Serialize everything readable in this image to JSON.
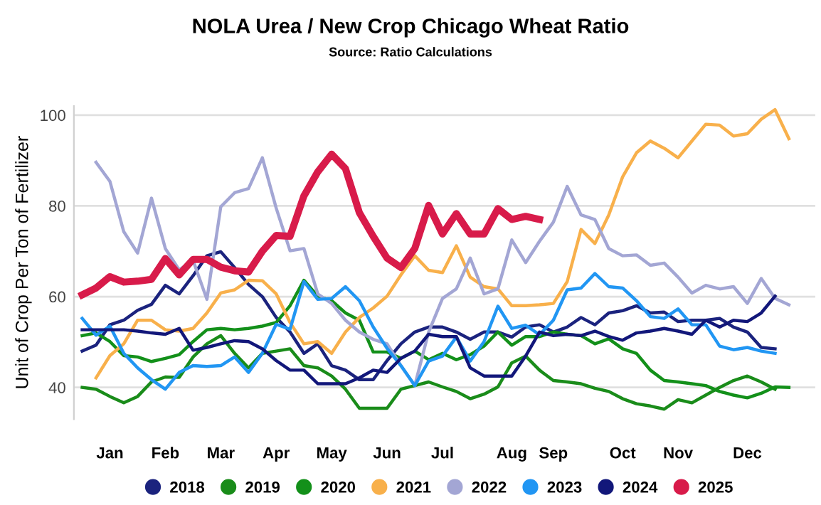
{
  "chart_data": {
    "type": "line",
    "title": "NOLA Urea / New Crop Chicago Wheat Ratio",
    "subtitle": "Source: Ratio Calculations",
    "ylabel": "Unit of Crop Per Ton of Fertilizer",
    "categories": [
      null,
      null,
      "Jan",
      null,
      null,
      null,
      "Feb",
      null,
      null,
      null,
      "Mar",
      null,
      null,
      null,
      "Apr",
      null,
      null,
      null,
      "May",
      null,
      null,
      null,
      "Jun",
      null,
      null,
      null,
      "Jul",
      null,
      null,
      null,
      null,
      "Aug",
      null,
      null,
      "Sep",
      null,
      null,
      null,
      null,
      "Oct",
      null,
      null,
      null,
      "Nov",
      null,
      null,
      null,
      null,
      "Dec",
      null,
      null,
      null
    ],
    "ylim": [
      33,
      102
    ],
    "yticks": [
      40,
      60,
      80,
      100
    ],
    "grid": "y",
    "legend": "bottom",
    "marker": "none",
    "line_style": "solid",
    "series": [
      {
        "name": "2018",
        "color": "#1b237e",
        "values": [
          48,
          49.3,
          53.8,
          54.8,
          57,
          58.3,
          62.5,
          60.6,
          64.6,
          69,
          69.9,
          66.4,
          62.7,
          60,
          55.4,
          52.2,
          47.5,
          49.6,
          44.8,
          43.8,
          41.7,
          41.7,
          45.9,
          49.6,
          52.2,
          53.3,
          53.3,
          52.2,
          50.6,
          52.2,
          52.2,
          51.1,
          53.3,
          53.8,
          52.2,
          53.3,
          55.4,
          53.8,
          56.4,
          56.9,
          58,
          56.4,
          56.6,
          54.5,
          54.8,
          54.8,
          55.2,
          53.3,
          52.2,
          48.8,
          48.5,
          null
        ]
      },
      {
        "name": "2019",
        "color": "#1a8c1a",
        "values": [
          40,
          39.6,
          38,
          36.6,
          38,
          41.2,
          42.3,
          42.2,
          46.7,
          49.6,
          51.4,
          47.5,
          44.3,
          47.5,
          48,
          48.5,
          44.8,
          44.3,
          42.5,
          39.6,
          35.4,
          35.4,
          35.4,
          39.6,
          40.4,
          41.2,
          40.1,
          39.1,
          37.5,
          38.5,
          40.1,
          45.4,
          46.9,
          43.8,
          41.5,
          41.2,
          40.8,
          39.8,
          39.1,
          37.5,
          36.4,
          35.9,
          35.2,
          37.3,
          36.6,
          38.3,
          40,
          41.5,
          42.5,
          41.2,
          39.6,
          null
        ]
      },
      {
        "name": "2020",
        "color": "#13901a",
        "values": [
          51.4,
          52,
          50.1,
          47,
          46.7,
          45.7,
          46.4,
          47.2,
          50.1,
          52.7,
          53,
          52.7,
          53,
          53.5,
          54.3,
          58,
          63.6,
          60.1,
          59.1,
          56.4,
          54.8,
          47.8,
          47.8,
          46.4,
          48,
          46.1,
          47.5,
          46.1,
          47.2,
          49.1,
          52.2,
          49.3,
          51.2,
          51.2,
          52.2,
          51.7,
          51.4,
          49.6,
          50.7,
          48.5,
          47.5,
          43.8,
          41.5,
          41.2,
          40.8,
          40.4,
          39.1,
          38.3,
          37.7,
          38.7,
          40.1,
          40
        ]
      },
      {
        "name": "2021",
        "color": "#f8b04b",
        "values": [
          null,
          42.1,
          47,
          49.6,
          54.8,
          54.8,
          52.7,
          52.4,
          53,
          56.4,
          60.8,
          61.5,
          63.6,
          63.5,
          60.6,
          54.3,
          49.6,
          50.1,
          47.5,
          52.2,
          55.4,
          57.5,
          60.1,
          64.8,
          69,
          65.8,
          65.3,
          71.2,
          64.3,
          62.2,
          61.7,
          58,
          58,
          58.2,
          58.5,
          63.3,
          74.8,
          71.7,
          78,
          86.4,
          91.7,
          94.3,
          92.7,
          90.6,
          94.3,
          98,
          97.8,
          95.4,
          95.9,
          99.1,
          101.2,
          94.8
        ]
      },
      {
        "name": "2022",
        "color": "#a3a6d4",
        "values": [
          null,
          89.6,
          85.4,
          74.3,
          69.6,
          81.7,
          70.6,
          65.9,
          68,
          59.4,
          79.8,
          82.9,
          83.8,
          90.6,
          79.5,
          70.1,
          70.6,
          60.6,
          58.5,
          54.8,
          52.2,
          50.6,
          49.6,
          44.8,
          40.4,
          52.2,
          59.6,
          61.7,
          68.5,
          60.6,
          61.7,
          72.5,
          67.5,
          72.2,
          76.4,
          84.3,
          78,
          77,
          70.6,
          69,
          69.2,
          66.9,
          67.4,
          64.3,
          60.8,
          62.5,
          61.7,
          62.2,
          58.5,
          64,
          59.6,
          58.2
        ]
      },
      {
        "name": "2023",
        "color": "#2196f3",
        "values": [
          55.2,
          51.5,
          53.5,
          47.5,
          44.3,
          41.7,
          39.6,
          43.3,
          44.8,
          44.6,
          44.8,
          46.7,
          43.3,
          47.5,
          53.9,
          52.8,
          63.3,
          59.4,
          59.6,
          62.2,
          59.1,
          53.3,
          48.6,
          44.8,
          40.4,
          45.8,
          46.9,
          51.1,
          45.8,
          50.1,
          57.9,
          53,
          53.7,
          51.6,
          54.8,
          61.5,
          61.9,
          65.1,
          62.2,
          61.9,
          59.1,
          55.6,
          55.2,
          57.3,
          53.8,
          53.8,
          49.1,
          48.3,
          48.8,
          48,
          47.5,
          null
        ]
      },
      {
        "name": "2024",
        "color": "#12177a",
        "values": [
          52.7,
          52.7,
          52.7,
          52.7,
          52.4,
          52,
          51.7,
          53,
          48.2,
          48.8,
          49.6,
          50.3,
          50.1,
          48.5,
          45.9,
          43.8,
          43.8,
          40.8,
          40.8,
          40.8,
          42.1,
          43.8,
          43.3,
          46.4,
          48,
          51.7,
          51.2,
          51.2,
          44.3,
          42.5,
          42.5,
          42.5,
          46.9,
          52.2,
          51.4,
          51.7,
          51.4,
          52.4,
          51.2,
          50.4,
          52,
          52.4,
          53,
          52.4,
          51.7,
          54.8,
          53.3,
          54.8,
          54.5,
          56.4,
          60.1,
          null
        ]
      },
      {
        "name": "2025",
        "color": "#d81b4a",
        "values": [
          60.4,
          61.9,
          64.4,
          63.2,
          63.4,
          63.8,
          68.4,
          64.8,
          68.2,
          68.2,
          66.5,
          65.7,
          65.4,
          70,
          73.5,
          73.3,
          82.2,
          87.5,
          91.4,
          88.2,
          78.5,
          73.3,
          68.5,
          66.4,
          70.6,
          80.1,
          73.8,
          78.3,
          73.8,
          73.8,
          79.4,
          77,
          77.7,
          77,
          null,
          null,
          null,
          null,
          null,
          null,
          null,
          null,
          null,
          null,
          null,
          null,
          null,
          null,
          null,
          null,
          null,
          null
        ]
      }
    ]
  }
}
